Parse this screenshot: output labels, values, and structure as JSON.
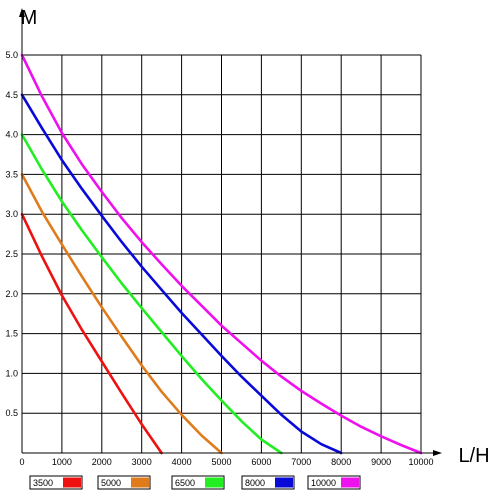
{
  "chart_data": {
    "type": "line",
    "title": "",
    "xlabel": "L/H",
    "ylabel": "M",
    "xlim": [
      0,
      10000
    ],
    "ylim": [
      0,
      5.0
    ],
    "x_ticks": [
      "0",
      "1000",
      "2000",
      "3000",
      "4000",
      "5000",
      "6000",
      "7000",
      "8000",
      "9000",
      "10000"
    ],
    "y_ticks": [
      "0.5",
      "1.0",
      "1.5",
      "2.0",
      "2.5",
      "3.0",
      "3.5",
      "4.0",
      "4.5",
      "5.0"
    ],
    "grid": true,
    "legend_position": "bottom",
    "series": [
      {
        "name": "3500",
        "color": "#ee1111",
        "points": [
          [
            0,
            3.0
          ],
          [
            500,
            2.47
          ],
          [
            1000,
            1.98
          ],
          [
            1500,
            1.55
          ],
          [
            2000,
            1.15
          ],
          [
            2500,
            0.75
          ],
          [
            3000,
            0.36
          ],
          [
            3500,
            0.0
          ]
        ]
      },
      {
        "name": "5000",
        "color": "#e07b1c",
        "points": [
          [
            0,
            3.5
          ],
          [
            500,
            3.03
          ],
          [
            1000,
            2.62
          ],
          [
            1500,
            2.22
          ],
          [
            2000,
            1.83
          ],
          [
            2500,
            1.46
          ],
          [
            3000,
            1.1
          ],
          [
            3500,
            0.77
          ],
          [
            4000,
            0.48
          ],
          [
            4500,
            0.22
          ],
          [
            5000,
            0.0
          ]
        ]
      },
      {
        "name": "6500",
        "color": "#22ee22",
        "points": [
          [
            0,
            4.0
          ],
          [
            500,
            3.56
          ],
          [
            1000,
            3.16
          ],
          [
            1500,
            2.8
          ],
          [
            2000,
            2.46
          ],
          [
            2500,
            2.13
          ],
          [
            3000,
            1.82
          ],
          [
            3500,
            1.52
          ],
          [
            4000,
            1.22
          ],
          [
            4500,
            0.93
          ],
          [
            5000,
            0.66
          ],
          [
            5500,
            0.4
          ],
          [
            6000,
            0.17
          ],
          [
            6500,
            0.0
          ]
        ]
      },
      {
        "name": "8000",
        "color": "#0a0ad8",
        "points": [
          [
            0,
            4.5
          ],
          [
            500,
            4.08
          ],
          [
            1000,
            3.68
          ],
          [
            1500,
            3.32
          ],
          [
            2000,
            2.98
          ],
          [
            2500,
            2.65
          ],
          [
            3000,
            2.34
          ],
          [
            3500,
            2.05
          ],
          [
            4000,
            1.76
          ],
          [
            4500,
            1.49
          ],
          [
            5000,
            1.22
          ],
          [
            5500,
            0.96
          ],
          [
            6000,
            0.72
          ],
          [
            6500,
            0.48
          ],
          [
            7000,
            0.27
          ],
          [
            7500,
            0.11
          ],
          [
            8000,
            0.0
          ]
        ]
      },
      {
        "name": "10000",
        "color": "#ee11ee",
        "points": [
          [
            0,
            5.0
          ],
          [
            500,
            4.48
          ],
          [
            1000,
            4.02
          ],
          [
            1500,
            3.63
          ],
          [
            2000,
            3.28
          ],
          [
            2500,
            2.95
          ],
          [
            3000,
            2.65
          ],
          [
            3500,
            2.37
          ],
          [
            4000,
            2.1
          ],
          [
            4500,
            1.85
          ],
          [
            5000,
            1.6
          ],
          [
            5500,
            1.38
          ],
          [
            6000,
            1.16
          ],
          [
            6500,
            0.96
          ],
          [
            7000,
            0.78
          ],
          [
            7500,
            0.62
          ],
          [
            8000,
            0.47
          ],
          [
            8500,
            0.33
          ],
          [
            9000,
            0.21
          ],
          [
            9500,
            0.1
          ],
          [
            10000,
            0.0
          ]
        ]
      }
    ]
  }
}
